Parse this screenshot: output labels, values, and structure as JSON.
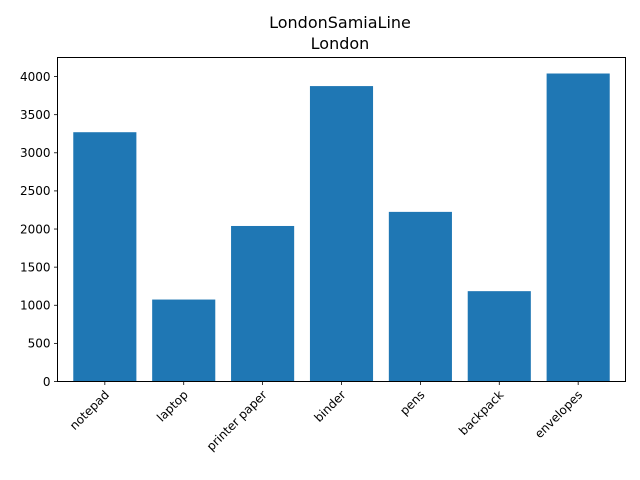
{
  "chart_data": {
    "type": "bar",
    "title": "LondonSamiaLine",
    "subtitle": "London",
    "xlabel": "",
    "ylabel": "",
    "categories": [
      "notepad",
      "laptop",
      "printer paper",
      "binder",
      "pens",
      "backpack",
      "envelopes"
    ],
    "values": [
      3270,
      1075,
      2040,
      3875,
      2225,
      1185,
      4040
    ],
    "ylim": [
      0,
      4250
    ],
    "yticks": [
      0,
      500,
      1000,
      1500,
      2000,
      2500,
      3000,
      3500,
      4000
    ],
    "ytick_labels": [
      "0",
      "500",
      "1000",
      "1500",
      "2000",
      "2500",
      "3000",
      "3500",
      "4000"
    ],
    "xtick_rotation": 45,
    "grid": false,
    "legend": "none",
    "bar_color": "#1f77b4"
  }
}
